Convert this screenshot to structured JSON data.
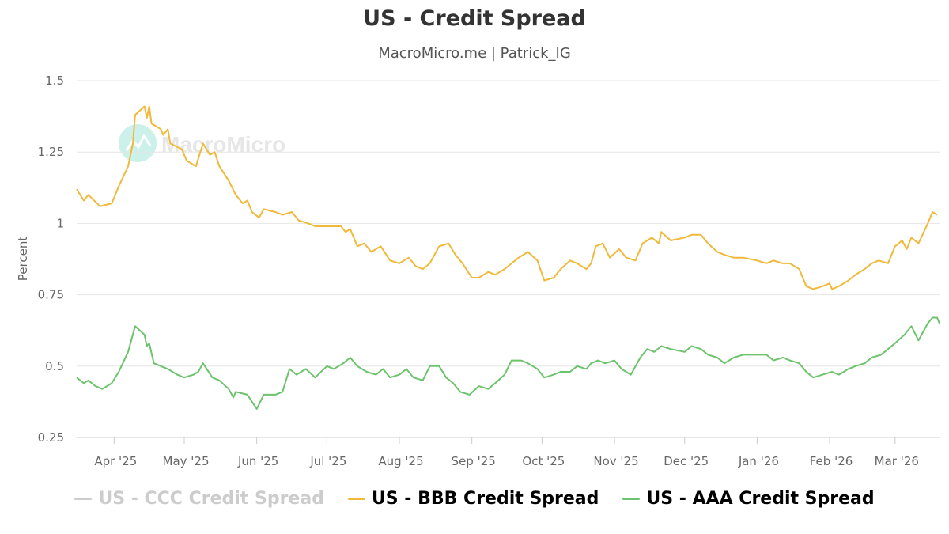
{
  "chart_data": {
    "type": "line",
    "title": "US - Credit Spread",
    "subtitle": "MacroMicro.me | Patrick_IG",
    "ylabel": "Percent",
    "xlabel": "",
    "ylim": [
      0.25,
      1.5
    ],
    "yticks": [
      "0.25",
      "0.5",
      "0.75",
      "1",
      "1.25",
      "1.5"
    ],
    "ytick_values": [
      0.25,
      0.5,
      0.75,
      1,
      1.25,
      1.5
    ],
    "xticks": [
      "Apr '25",
      "May '25",
      "Jun '25",
      "Jul '25",
      "Aug '25",
      "Sep '25",
      "Oct '25",
      "Nov '25",
      "Dec '25",
      "Jan '26",
      "Feb '26",
      "Mar '26"
    ],
    "x_start": "2025-03-16",
    "x_end": "2026-03-20",
    "x_months": [
      "2025-04-01",
      "2025-05-01",
      "2025-06-01",
      "2025-07-01",
      "2025-08-01",
      "2025-09-01",
      "2025-10-01",
      "2025-11-01",
      "2025-12-01",
      "2026-01-01",
      "2026-02-01",
      "2026-03-01"
    ],
    "watermark": "MacroMicro",
    "grid": true,
    "series": [
      {
        "name": "US - CCC Credit Spread",
        "color": "#cccccc",
        "visible": false,
        "points": []
      },
      {
        "name": "US - BBB Credit Spread",
        "color": "#f0b93a",
        "visible": true,
        "points": [
          [
            "2025-03-16",
            1.12
          ],
          [
            "2025-03-19",
            1.08
          ],
          [
            "2025-03-21",
            1.1
          ],
          [
            "2025-03-26",
            1.06
          ],
          [
            "2025-03-31",
            1.07
          ],
          [
            "2025-04-03",
            1.13
          ],
          [
            "2025-04-07",
            1.2
          ],
          [
            "2025-04-09",
            1.28
          ],
          [
            "2025-04-10",
            1.38
          ],
          [
            "2025-04-14",
            1.41
          ],
          [
            "2025-04-15",
            1.37
          ],
          [
            "2025-04-16",
            1.41
          ],
          [
            "2025-04-17",
            1.35
          ],
          [
            "2025-04-21",
            1.33
          ],
          [
            "2025-04-22",
            1.31
          ],
          [
            "2025-04-24",
            1.33
          ],
          [
            "2025-04-25",
            1.28
          ],
          [
            "2025-04-30",
            1.26
          ],
          [
            "2025-05-02",
            1.22
          ],
          [
            "2025-05-06",
            1.2
          ],
          [
            "2025-05-09",
            1.28
          ],
          [
            "2025-05-12",
            1.24
          ],
          [
            "2025-05-14",
            1.25
          ],
          [
            "2025-05-16",
            1.2
          ],
          [
            "2025-05-20",
            1.15
          ],
          [
            "2025-05-23",
            1.1
          ],
          [
            "2025-05-26",
            1.07
          ],
          [
            "2025-05-28",
            1.08
          ],
          [
            "2025-05-30",
            1.04
          ],
          [
            "2025-06-02",
            1.02
          ],
          [
            "2025-06-04",
            1.05
          ],
          [
            "2025-06-09",
            1.04
          ],
          [
            "2025-06-12",
            1.03
          ],
          [
            "2025-06-16",
            1.04
          ],
          [
            "2025-06-19",
            1.01
          ],
          [
            "2025-06-23",
            1.0
          ],
          [
            "2025-06-26",
            0.99
          ],
          [
            "2025-06-30",
            0.99
          ],
          [
            "2025-07-03",
            0.99
          ],
          [
            "2025-07-07",
            0.99
          ],
          [
            "2025-07-09",
            0.97
          ],
          [
            "2025-07-11",
            0.98
          ],
          [
            "2025-07-14",
            0.92
          ],
          [
            "2025-07-17",
            0.93
          ],
          [
            "2025-07-20",
            0.9
          ],
          [
            "2025-07-24",
            0.92
          ],
          [
            "2025-07-28",
            0.87
          ],
          [
            "2025-08-01",
            0.86
          ],
          [
            "2025-08-05",
            0.88
          ],
          [
            "2025-08-08",
            0.85
          ],
          [
            "2025-08-11",
            0.84
          ],
          [
            "2025-08-14",
            0.86
          ],
          [
            "2025-08-18",
            0.92
          ],
          [
            "2025-08-22",
            0.93
          ],
          [
            "2025-08-25",
            0.89
          ],
          [
            "2025-08-28",
            0.86
          ],
          [
            "2025-09-01",
            0.81
          ],
          [
            "2025-09-04",
            0.81
          ],
          [
            "2025-09-08",
            0.83
          ],
          [
            "2025-09-11",
            0.82
          ],
          [
            "2025-09-15",
            0.84
          ],
          [
            "2025-09-18",
            0.86
          ],
          [
            "2025-09-21",
            0.88
          ],
          [
            "2025-09-25",
            0.9
          ],
          [
            "2025-09-29",
            0.87
          ],
          [
            "2025-10-02",
            0.8
          ],
          [
            "2025-10-06",
            0.81
          ],
          [
            "2025-10-09",
            0.84
          ],
          [
            "2025-10-13",
            0.87
          ],
          [
            "2025-10-16",
            0.86
          ],
          [
            "2025-10-20",
            0.84
          ],
          [
            "2025-10-22",
            0.86
          ],
          [
            "2025-10-24",
            0.92
          ],
          [
            "2025-10-27",
            0.93
          ],
          [
            "2025-10-30",
            0.88
          ],
          [
            "2025-11-03",
            0.91
          ],
          [
            "2025-11-06",
            0.88
          ],
          [
            "2025-11-10",
            0.87
          ],
          [
            "2025-11-13",
            0.93
          ],
          [
            "2025-11-17",
            0.95
          ],
          [
            "2025-11-20",
            0.93
          ],
          [
            "2025-11-21",
            0.97
          ],
          [
            "2025-11-25",
            0.94
          ],
          [
            "2025-12-01",
            0.95
          ],
          [
            "2025-12-04",
            0.96
          ],
          [
            "2025-12-08",
            0.96
          ],
          [
            "2025-12-11",
            0.93
          ],
          [
            "2025-12-15",
            0.9
          ],
          [
            "2025-12-18",
            0.89
          ],
          [
            "2025-12-22",
            0.88
          ],
          [
            "2025-12-26",
            0.88
          ],
          [
            "2026-01-01",
            0.87
          ],
          [
            "2026-01-05",
            0.86
          ],
          [
            "2026-01-08",
            0.87
          ],
          [
            "2026-01-12",
            0.86
          ],
          [
            "2026-01-15",
            0.86
          ],
          [
            "2026-01-19",
            0.84
          ],
          [
            "2026-01-22",
            0.78
          ],
          [
            "2026-01-25",
            0.77
          ],
          [
            "2026-01-29",
            0.78
          ],
          [
            "2026-02-01",
            0.79
          ],
          [
            "2026-02-02",
            0.77
          ],
          [
            "2026-02-05",
            0.78
          ],
          [
            "2026-02-09",
            0.8
          ],
          [
            "2026-02-12",
            0.82
          ],
          [
            "2026-02-16",
            0.84
          ],
          [
            "2026-02-19",
            0.86
          ],
          [
            "2026-02-22",
            0.87
          ],
          [
            "2026-02-26",
            0.86
          ],
          [
            "2026-03-01",
            0.92
          ],
          [
            "2026-03-04",
            0.94
          ],
          [
            "2026-03-06",
            0.91
          ],
          [
            "2026-03-08",
            0.95
          ],
          [
            "2026-03-11",
            0.93
          ],
          [
            "2026-03-15",
            1.0
          ],
          [
            "2026-03-17",
            1.04
          ],
          [
            "2026-03-19",
            1.03
          ]
        ]
      },
      {
        "name": "US - AAA Credit Spread",
        "color": "#6cc36c",
        "visible": true,
        "points": [
          [
            "2025-03-16",
            0.46
          ],
          [
            "2025-03-19",
            0.44
          ],
          [
            "2025-03-21",
            0.45
          ],
          [
            "2025-03-24",
            0.43
          ],
          [
            "2025-03-27",
            0.42
          ],
          [
            "2025-03-31",
            0.44
          ],
          [
            "2025-04-03",
            0.48
          ],
          [
            "2025-04-07",
            0.55
          ],
          [
            "2025-04-10",
            0.64
          ],
          [
            "2025-04-14",
            0.61
          ],
          [
            "2025-04-15",
            0.57
          ],
          [
            "2025-04-16",
            0.58
          ],
          [
            "2025-04-18",
            0.51
          ],
          [
            "2025-04-21",
            0.5
          ],
          [
            "2025-04-24",
            0.49
          ],
          [
            "2025-04-28",
            0.47
          ],
          [
            "2025-05-01",
            0.46
          ],
          [
            "2025-05-05",
            0.47
          ],
          [
            "2025-05-07",
            0.48
          ],
          [
            "2025-05-09",
            0.51
          ],
          [
            "2025-05-13",
            0.46
          ],
          [
            "2025-05-16",
            0.45
          ],
          [
            "2025-05-20",
            0.42
          ],
          [
            "2025-05-22",
            0.39
          ],
          [
            "2025-05-23",
            0.41
          ],
          [
            "2025-05-28",
            0.4
          ],
          [
            "2025-06-01",
            0.35
          ],
          [
            "2025-06-04",
            0.4
          ],
          [
            "2025-06-09",
            0.4
          ],
          [
            "2025-06-12",
            0.41
          ],
          [
            "2025-06-15",
            0.49
          ],
          [
            "2025-06-18",
            0.47
          ],
          [
            "2025-06-22",
            0.49
          ],
          [
            "2025-06-26",
            0.46
          ],
          [
            "2025-07-01",
            0.5
          ],
          [
            "2025-07-04",
            0.49
          ],
          [
            "2025-07-08",
            0.51
          ],
          [
            "2025-07-11",
            0.53
          ],
          [
            "2025-07-14",
            0.5
          ],
          [
            "2025-07-18",
            0.48
          ],
          [
            "2025-07-22",
            0.47
          ],
          [
            "2025-07-25",
            0.49
          ],
          [
            "2025-07-28",
            0.46
          ],
          [
            "2025-08-01",
            0.47
          ],
          [
            "2025-08-04",
            0.49
          ],
          [
            "2025-08-07",
            0.46
          ],
          [
            "2025-08-11",
            0.45
          ],
          [
            "2025-08-14",
            0.5
          ],
          [
            "2025-08-18",
            0.5
          ],
          [
            "2025-08-21",
            0.46
          ],
          [
            "2025-08-24",
            0.44
          ],
          [
            "2025-08-27",
            0.41
          ],
          [
            "2025-08-31",
            0.4
          ],
          [
            "2025-09-04",
            0.43
          ],
          [
            "2025-09-08",
            0.42
          ],
          [
            "2025-09-11",
            0.44
          ],
          [
            "2025-09-15",
            0.47
          ],
          [
            "2025-09-18",
            0.52
          ],
          [
            "2025-09-22",
            0.52
          ],
          [
            "2025-09-25",
            0.51
          ],
          [
            "2025-09-29",
            0.49
          ],
          [
            "2025-10-02",
            0.46
          ],
          [
            "2025-10-06",
            0.47
          ],
          [
            "2025-10-09",
            0.48
          ],
          [
            "2025-10-13",
            0.48
          ],
          [
            "2025-10-16",
            0.5
          ],
          [
            "2025-10-20",
            0.49
          ],
          [
            "2025-10-22",
            0.51
          ],
          [
            "2025-10-25",
            0.52
          ],
          [
            "2025-10-28",
            0.51
          ],
          [
            "2025-11-01",
            0.52
          ],
          [
            "2025-11-04",
            0.49
          ],
          [
            "2025-11-08",
            0.47
          ],
          [
            "2025-11-12",
            0.53
          ],
          [
            "2025-11-15",
            0.56
          ],
          [
            "2025-11-18",
            0.55
          ],
          [
            "2025-11-21",
            0.57
          ],
          [
            "2025-11-25",
            0.56
          ],
          [
            "2025-12-01",
            0.55
          ],
          [
            "2025-12-04",
            0.57
          ],
          [
            "2025-12-08",
            0.56
          ],
          [
            "2025-12-11",
            0.54
          ],
          [
            "2025-12-15",
            0.53
          ],
          [
            "2025-12-18",
            0.51
          ],
          [
            "2025-12-22",
            0.53
          ],
          [
            "2025-12-26",
            0.54
          ],
          [
            "2026-01-01",
            0.54
          ],
          [
            "2026-01-05",
            0.54
          ],
          [
            "2026-01-08",
            0.52
          ],
          [
            "2026-01-12",
            0.53
          ],
          [
            "2026-01-15",
            0.52
          ],
          [
            "2026-01-19",
            0.51
          ],
          [
            "2026-01-22",
            0.48
          ],
          [
            "2026-01-25",
            0.46
          ],
          [
            "2026-01-29",
            0.47
          ],
          [
            "2026-02-02",
            0.48
          ],
          [
            "2026-02-05",
            0.47
          ],
          [
            "2026-02-09",
            0.49
          ],
          [
            "2026-02-12",
            0.5
          ],
          [
            "2026-02-16",
            0.51
          ],
          [
            "2026-02-19",
            0.53
          ],
          [
            "2026-02-23",
            0.54
          ],
          [
            "2026-02-26",
            0.56
          ],
          [
            "2026-03-01",
            0.58
          ],
          [
            "2026-03-05",
            0.61
          ],
          [
            "2026-03-08",
            0.64
          ],
          [
            "2026-03-11",
            0.59
          ],
          [
            "2026-03-13",
            0.62
          ],
          [
            "2026-03-15",
            0.65
          ],
          [
            "2026-03-17",
            0.67
          ],
          [
            "2026-03-19",
            0.67
          ],
          [
            "2026-03-20",
            0.65
          ]
        ]
      }
    ]
  }
}
